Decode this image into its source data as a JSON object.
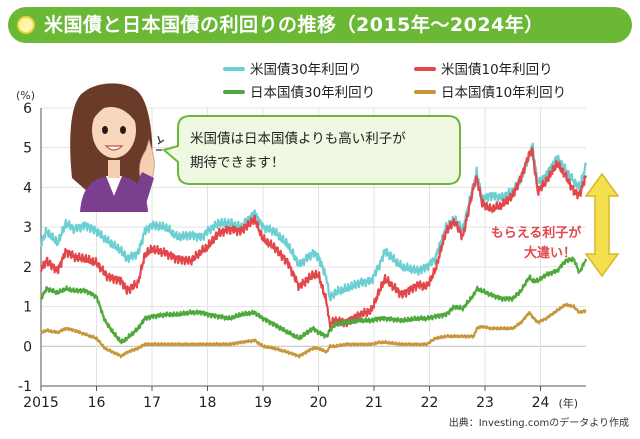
{
  "title": "米国債と日本国債の利回りの推移（2015年〜2024年）",
  "colors": {
    "title_bg": "#6bb736",
    "us30": "#6ccfd2",
    "us10": "#e2474b",
    "jp30": "#4fa83a",
    "jp10": "#c8963b",
    "speech_border": "#6bb736",
    "speech_bg": "#eef8e2",
    "arrow_fill": "#f4e04d",
    "arrow_stroke": "#d8b82a",
    "callout_text": "#e2474b"
  },
  "speech_bubble": {
    "line1": "米国債は日本国債よりも高い利子が",
    "line2": "期待できます！"
  },
  "callout": {
    "line1": "もらえる利子が",
    "line2": "大違い！"
  },
  "illustration": {
    "icon": "woman-pointing-icon"
  },
  "source": "出典：Investing.comのデータより作成",
  "chart_data": {
    "type": "line",
    "title": "米国債と日本国債の利回りの推移（2015年〜2024年）",
    "xlabel": "",
    "ylabel": "",
    "y_unit": "(%)",
    "x_unit": "(年)",
    "xlim": [
      2015.0,
      2024.82
    ],
    "ylim": [
      -1,
      6
    ],
    "y_ticks": [
      -1,
      0,
      1,
      2,
      3,
      4,
      5,
      6
    ],
    "x_tick_labels": [
      "2015",
      "16",
      "17",
      "18",
      "19",
      "20",
      "21",
      "22",
      "23",
      "24"
    ],
    "grid": true,
    "legend_position": "top",
    "series": [
      {
        "name": "米国債30年利回り",
        "points": [
          [
            2015.0,
            2.6
          ],
          [
            2015.1,
            2.9
          ],
          [
            2015.3,
            2.6
          ],
          [
            2015.45,
            3.1
          ],
          [
            2015.6,
            2.95
          ],
          [
            2015.8,
            3.05
          ],
          [
            2016.0,
            2.9
          ],
          [
            2016.2,
            2.65
          ],
          [
            2016.45,
            2.4
          ],
          [
            2016.55,
            2.2
          ],
          [
            2016.75,
            2.35
          ],
          [
            2016.87,
            2.9
          ],
          [
            2017.0,
            3.05
          ],
          [
            2017.25,
            3.0
          ],
          [
            2017.45,
            2.75
          ],
          [
            2017.7,
            2.8
          ],
          [
            2017.9,
            2.75
          ],
          [
            2018.0,
            2.9
          ],
          [
            2018.2,
            3.1
          ],
          [
            2018.4,
            3.1
          ],
          [
            2018.6,
            3.0
          ],
          [
            2018.85,
            3.35
          ],
          [
            2019.0,
            3.0
          ],
          [
            2019.2,
            2.9
          ],
          [
            2019.45,
            2.55
          ],
          [
            2019.65,
            2.05
          ],
          [
            2019.9,
            2.35
          ],
          [
            2020.0,
            2.25
          ],
          [
            2020.15,
            1.7
          ],
          [
            2020.2,
            1.2
          ],
          [
            2020.3,
            1.35
          ],
          [
            2020.5,
            1.45
          ],
          [
            2020.75,
            1.6
          ],
          [
            2020.95,
            1.65
          ],
          [
            2021.1,
            2.05
          ],
          [
            2021.2,
            2.4
          ],
          [
            2021.5,
            2.0
          ],
          [
            2021.8,
            1.9
          ],
          [
            2021.95,
            2.0
          ],
          [
            2022.1,
            2.2
          ],
          [
            2022.3,
            3.0
          ],
          [
            2022.45,
            3.2
          ],
          [
            2022.6,
            2.95
          ],
          [
            2022.8,
            4.1
          ],
          [
            2022.85,
            4.4
          ],
          [
            2022.95,
            3.7
          ],
          [
            2023.1,
            3.8
          ],
          [
            2023.3,
            3.75
          ],
          [
            2023.5,
            3.9
          ],
          [
            2023.65,
            4.2
          ],
          [
            2023.8,
            4.8
          ],
          [
            2023.85,
            5.1
          ],
          [
            2023.95,
            4.1
          ],
          [
            2024.1,
            4.3
          ],
          [
            2024.3,
            4.75
          ],
          [
            2024.45,
            4.45
          ],
          [
            2024.6,
            4.15
          ],
          [
            2024.7,
            4.0
          ],
          [
            2024.82,
            4.55
          ]
        ]
      },
      {
        "name": "米国債10年利回り",
        "points": [
          [
            2015.0,
            1.95
          ],
          [
            2015.1,
            2.15
          ],
          [
            2015.3,
            1.9
          ],
          [
            2015.45,
            2.4
          ],
          [
            2015.6,
            2.25
          ],
          [
            2015.8,
            2.2
          ],
          [
            2016.0,
            2.1
          ],
          [
            2016.2,
            1.75
          ],
          [
            2016.45,
            1.65
          ],
          [
            2016.55,
            1.4
          ],
          [
            2016.75,
            1.6
          ],
          [
            2016.87,
            2.3
          ],
          [
            2017.0,
            2.45
          ],
          [
            2017.25,
            2.35
          ],
          [
            2017.45,
            2.2
          ],
          [
            2017.7,
            2.15
          ],
          [
            2017.9,
            2.4
          ],
          [
            2018.0,
            2.5
          ],
          [
            2018.2,
            2.85
          ],
          [
            2018.4,
            2.95
          ],
          [
            2018.6,
            2.9
          ],
          [
            2018.85,
            3.2
          ],
          [
            2019.0,
            2.7
          ],
          [
            2019.2,
            2.5
          ],
          [
            2019.45,
            2.1
          ],
          [
            2019.65,
            1.5
          ],
          [
            2019.9,
            1.8
          ],
          [
            2020.0,
            1.8
          ],
          [
            2020.15,
            1.1
          ],
          [
            2020.2,
            0.55
          ],
          [
            2020.3,
            0.65
          ],
          [
            2020.5,
            0.6
          ],
          [
            2020.75,
            0.8
          ],
          [
            2020.95,
            0.9
          ],
          [
            2021.1,
            1.4
          ],
          [
            2021.2,
            1.7
          ],
          [
            2021.5,
            1.3
          ],
          [
            2021.8,
            1.55
          ],
          [
            2021.95,
            1.5
          ],
          [
            2022.1,
            1.9
          ],
          [
            2022.3,
            2.9
          ],
          [
            2022.45,
            3.15
          ],
          [
            2022.6,
            2.75
          ],
          [
            2022.8,
            4.05
          ],
          [
            2022.85,
            4.25
          ],
          [
            2022.95,
            3.6
          ],
          [
            2023.1,
            3.45
          ],
          [
            2023.3,
            3.55
          ],
          [
            2023.5,
            3.8
          ],
          [
            2023.65,
            4.25
          ],
          [
            2023.8,
            4.85
          ],
          [
            2023.85,
            4.95
          ],
          [
            2023.95,
            3.9
          ],
          [
            2024.1,
            4.15
          ],
          [
            2024.3,
            4.6
          ],
          [
            2024.45,
            4.3
          ],
          [
            2024.6,
            3.9
          ],
          [
            2024.7,
            3.8
          ],
          [
            2024.82,
            4.3
          ]
        ]
      },
      {
        "name": "日本国債30年利回り",
        "points": [
          [
            2015.0,
            1.2
          ],
          [
            2015.1,
            1.45
          ],
          [
            2015.3,
            1.35
          ],
          [
            2015.45,
            1.45
          ],
          [
            2015.6,
            1.4
          ],
          [
            2015.8,
            1.4
          ],
          [
            2016.0,
            1.25
          ],
          [
            2016.15,
            0.65
          ],
          [
            2016.3,
            0.35
          ],
          [
            2016.45,
            0.1
          ],
          [
            2016.55,
            0.2
          ],
          [
            2016.75,
            0.45
          ],
          [
            2016.87,
            0.7
          ],
          [
            2017.0,
            0.75
          ],
          [
            2017.25,
            0.8
          ],
          [
            2017.45,
            0.8
          ],
          [
            2017.7,
            0.85
          ],
          [
            2017.9,
            0.85
          ],
          [
            2018.0,
            0.8
          ],
          [
            2018.2,
            0.75
          ],
          [
            2018.4,
            0.7
          ],
          [
            2018.6,
            0.8
          ],
          [
            2018.85,
            0.85
          ],
          [
            2019.0,
            0.7
          ],
          [
            2019.2,
            0.55
          ],
          [
            2019.45,
            0.35
          ],
          [
            2019.65,
            0.2
          ],
          [
            2019.9,
            0.45
          ],
          [
            2020.0,
            0.35
          ],
          [
            2020.15,
            0.25
          ],
          [
            2020.2,
            0.4
          ],
          [
            2020.3,
            0.55
          ],
          [
            2020.5,
            0.6
          ],
          [
            2020.75,
            0.65
          ],
          [
            2020.95,
            0.65
          ],
          [
            2021.1,
            0.7
          ],
          [
            2021.2,
            0.7
          ],
          [
            2021.5,
            0.65
          ],
          [
            2021.8,
            0.7
          ],
          [
            2021.95,
            0.7
          ],
          [
            2022.1,
            0.75
          ],
          [
            2022.3,
            0.8
          ],
          [
            2022.45,
            1.0
          ],
          [
            2022.6,
            0.95
          ],
          [
            2022.8,
            1.3
          ],
          [
            2022.85,
            1.45
          ],
          [
            2022.95,
            1.4
          ],
          [
            2023.1,
            1.3
          ],
          [
            2023.3,
            1.2
          ],
          [
            2023.5,
            1.2
          ],
          [
            2023.65,
            1.4
          ],
          [
            2023.8,
            1.75
          ],
          [
            2023.85,
            1.65
          ],
          [
            2023.95,
            1.65
          ],
          [
            2024.1,
            1.8
          ],
          [
            2024.3,
            1.9
          ],
          [
            2024.45,
            2.15
          ],
          [
            2024.6,
            2.2
          ],
          [
            2024.7,
            1.85
          ],
          [
            2024.82,
            2.2
          ]
        ]
      },
      {
        "name": "日本国債10年利回り",
        "points": [
          [
            2015.0,
            0.35
          ],
          [
            2015.1,
            0.4
          ],
          [
            2015.3,
            0.35
          ],
          [
            2015.45,
            0.45
          ],
          [
            2015.6,
            0.4
          ],
          [
            2015.8,
            0.3
          ],
          [
            2016.0,
            0.2
          ],
          [
            2016.15,
            -0.05
          ],
          [
            2016.3,
            -0.15
          ],
          [
            2016.45,
            -0.25
          ],
          [
            2016.55,
            -0.15
          ],
          [
            2016.75,
            -0.05
          ],
          [
            2016.87,
            0.05
          ],
          [
            2017.0,
            0.05
          ],
          [
            2017.25,
            0.05
          ],
          [
            2017.45,
            0.05
          ],
          [
            2017.7,
            0.05
          ],
          [
            2017.9,
            0.05
          ],
          [
            2018.0,
            0.05
          ],
          [
            2018.2,
            0.05
          ],
          [
            2018.4,
            0.05
          ],
          [
            2018.6,
            0.1
          ],
          [
            2018.85,
            0.15
          ],
          [
            2019.0,
            0.0
          ],
          [
            2019.2,
            -0.05
          ],
          [
            2019.45,
            -0.15
          ],
          [
            2019.65,
            -0.25
          ],
          [
            2019.9,
            -0.05
          ],
          [
            2020.0,
            -0.05
          ],
          [
            2020.15,
            -0.15
          ],
          [
            2020.2,
            0.0
          ],
          [
            2020.3,
            0.0
          ],
          [
            2020.5,
            0.05
          ],
          [
            2020.75,
            0.05
          ],
          [
            2020.95,
            0.05
          ],
          [
            2021.1,
            0.1
          ],
          [
            2021.2,
            0.1
          ],
          [
            2021.5,
            0.05
          ],
          [
            2021.8,
            0.05
          ],
          [
            2021.95,
            0.05
          ],
          [
            2022.1,
            0.2
          ],
          [
            2022.3,
            0.25
          ],
          [
            2022.45,
            0.25
          ],
          [
            2022.6,
            0.25
          ],
          [
            2022.8,
            0.25
          ],
          [
            2022.85,
            0.45
          ],
          [
            2022.95,
            0.5
          ],
          [
            2023.1,
            0.45
          ],
          [
            2023.3,
            0.45
          ],
          [
            2023.5,
            0.45
          ],
          [
            2023.65,
            0.6
          ],
          [
            2023.8,
            0.85
          ],
          [
            2023.85,
            0.75
          ],
          [
            2023.95,
            0.6
          ],
          [
            2024.1,
            0.7
          ],
          [
            2024.3,
            0.9
          ],
          [
            2024.45,
            1.05
          ],
          [
            2024.6,
            1.0
          ],
          [
            2024.7,
            0.85
          ],
          [
            2024.82,
            0.9
          ]
        ]
      }
    ]
  }
}
